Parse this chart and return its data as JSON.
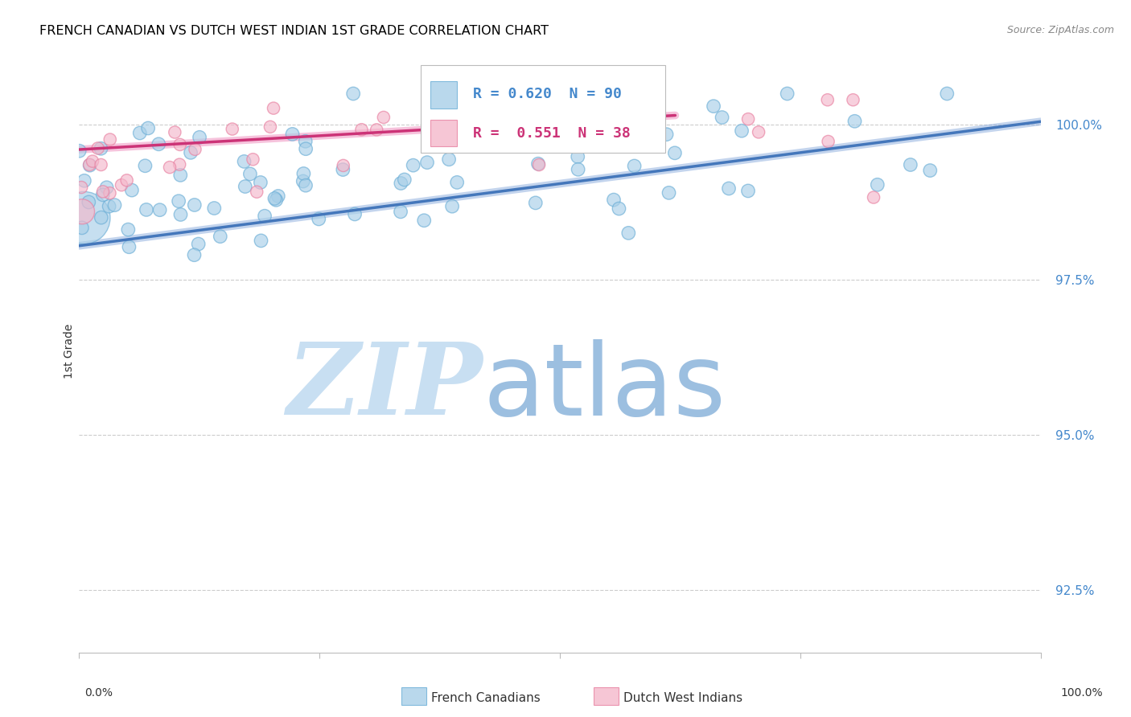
{
  "title": "FRENCH CANADIAN VS DUTCH WEST INDIAN 1ST GRADE CORRELATION CHART",
  "source": "Source: ZipAtlas.com",
  "ylabel": "1st Grade",
  "y_ticks": [
    92.5,
    95.0,
    97.5,
    100.0
  ],
  "y_tick_labels": [
    "92.5%",
    "95.0%",
    "97.5%",
    "100.0%"
  ],
  "x_range": [
    0.0,
    1.0
  ],
  "y_range": [
    91.5,
    101.2
  ],
  "blue_R": 0.62,
  "blue_N": 90,
  "pink_R": 0.551,
  "pink_N": 38,
  "blue_color": "#a8cfe8",
  "pink_color": "#f4b8cb",
  "blue_edge_color": "#6baed6",
  "pink_edge_color": "#e87fa0",
  "blue_line_color": "#4477bb",
  "pink_line_color": "#cc3377",
  "blue_line_light": "#88aadd",
  "pink_line_light": "#ee88bb",
  "watermark_zip": "ZIP",
  "watermark_atlas": "atlas",
  "watermark_color_zip": "#c8dff2",
  "watermark_color_atlas": "#9cbfe0",
  "blue_label": "French Canadians",
  "pink_label": "Dutch West Indians",
  "legend_blue_text": "R = 0.620  N = 90",
  "legend_pink_text": "R =  0.551  N = 38",
  "blue_trend_x0": 0.0,
  "blue_trend_y0": 98.05,
  "blue_trend_x1": 1.0,
  "blue_trend_y1": 100.05,
  "pink_trend_x0": 0.0,
  "pink_trend_y0": 99.6,
  "pink_trend_x1": 0.62,
  "pink_trend_y1": 100.15
}
